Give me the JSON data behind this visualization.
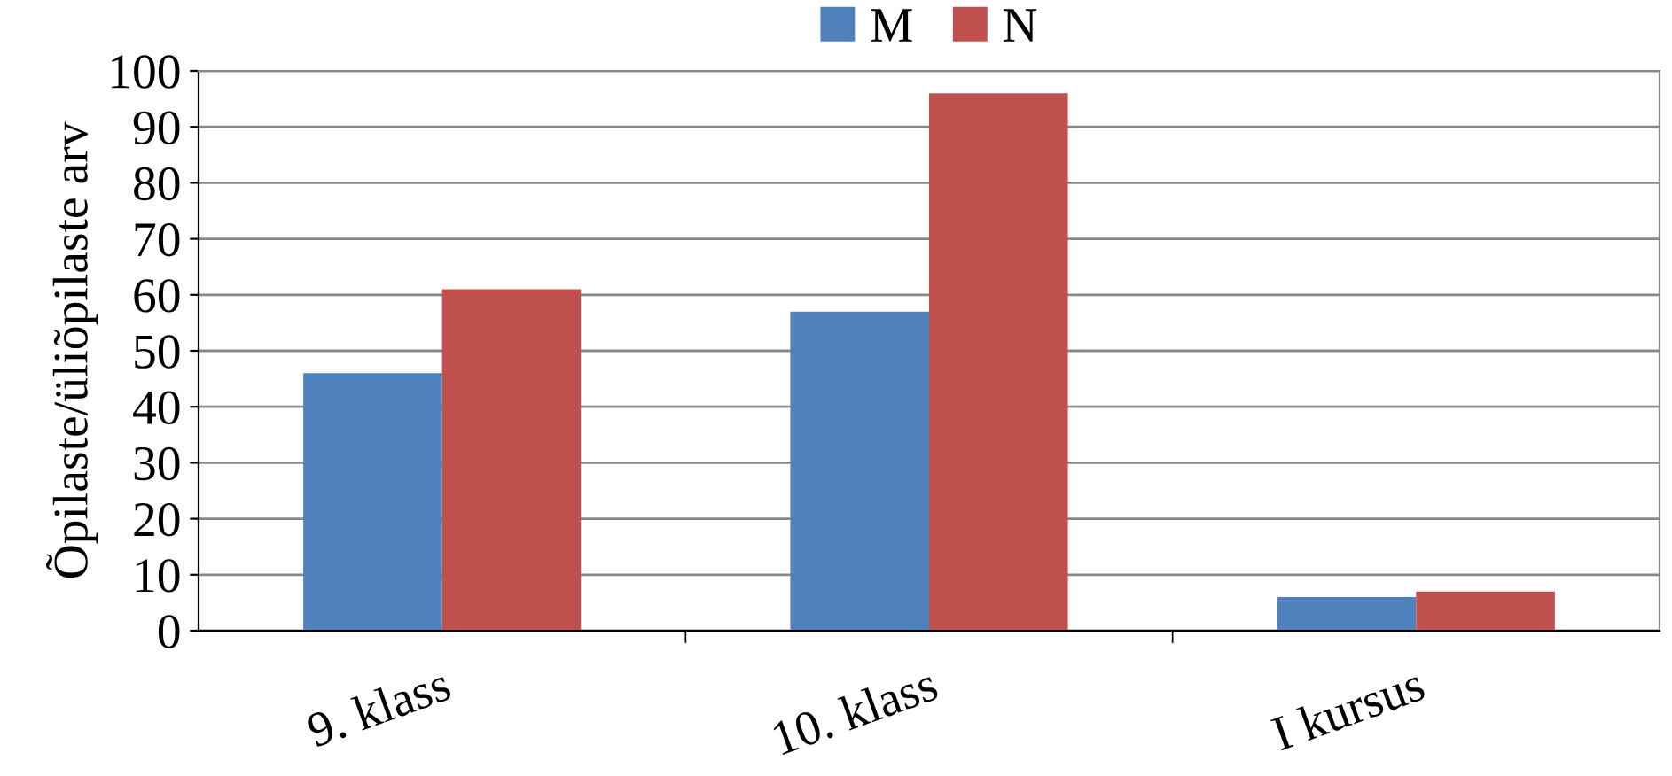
{
  "chart_data": {
    "type": "bar",
    "ylabel": "Õpilaste/üliõpilaste arv",
    "categories": [
      "9. klass",
      "10. klass",
      "I kursus"
    ],
    "series": [
      {
        "name": "M",
        "color": "#4f81bd",
        "values": [
          46,
          57,
          6
        ]
      },
      {
        "name": "N",
        "color": "#c0504d",
        "values": [
          61,
          96,
          7
        ]
      }
    ],
    "ylim": [
      0,
      100
    ],
    "yticks": [
      0,
      10,
      20,
      30,
      40,
      50,
      60,
      70,
      80,
      90,
      100
    ],
    "grid": "y",
    "legend": "top"
  }
}
